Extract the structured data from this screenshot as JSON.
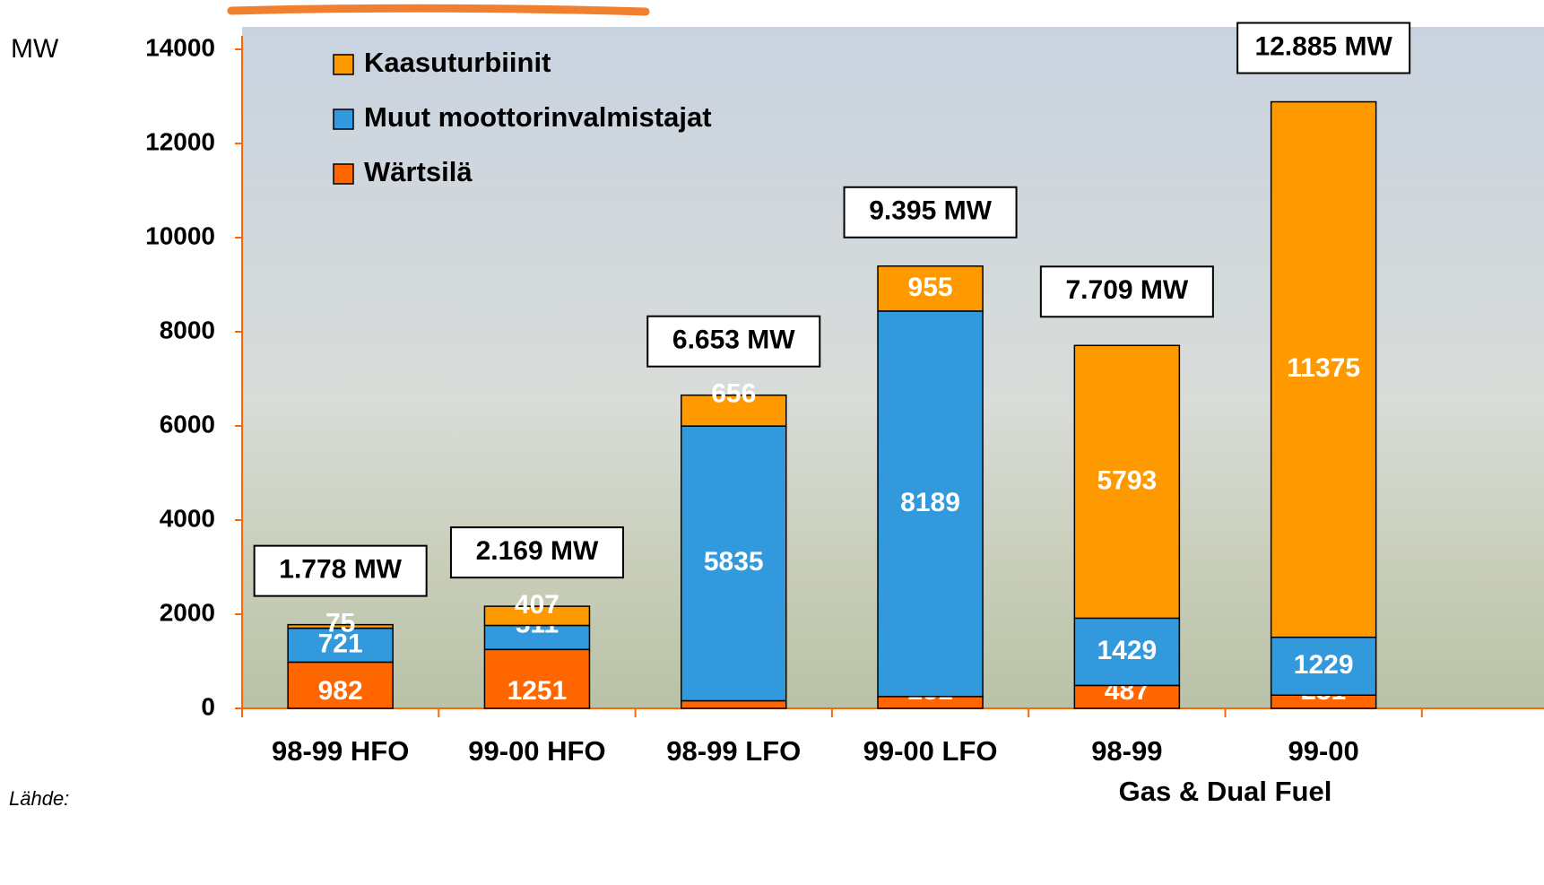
{
  "chart_data": {
    "type": "stacked_bar",
    "y_unit": "MW",
    "categories": [
      "98-99 HFO",
      "99-00 HFO",
      "98-99 LFO",
      "99-00 LFO",
      "98-99",
      "99-00"
    ],
    "group_label": "Gas & Dual Fuel",
    "series": [
      {
        "name": "Wärtsilä",
        "color": "#ff6600",
        "values": [
          982,
          1251,
          162,
          251,
          487,
          281
        ]
      },
      {
        "name": "Muut moottorinvalmistajat",
        "color": "#3399dd",
        "values": [
          721,
          511,
          5835,
          8189,
          1429,
          1229
        ]
      },
      {
        "name": "Kaasuturbiinit",
        "color": "#ff9900",
        "values": [
          75,
          407,
          656,
          955,
          5793,
          11375
        ]
      }
    ],
    "totals": [
      1778,
      2169,
      6653,
      9395,
      7709,
      12885
    ],
    "total_labels": [
      "1.778 MW",
      "2.169 MW",
      "6.653 MW",
      "9.395 MW",
      "7.709 MW",
      "12.885 MW"
    ],
    "ylim": [
      0,
      14000
    ],
    "yticks": [
      0,
      2000,
      4000,
      6000,
      8000,
      10000,
      12000,
      14000
    ],
    "source": "Lähde:"
  }
}
